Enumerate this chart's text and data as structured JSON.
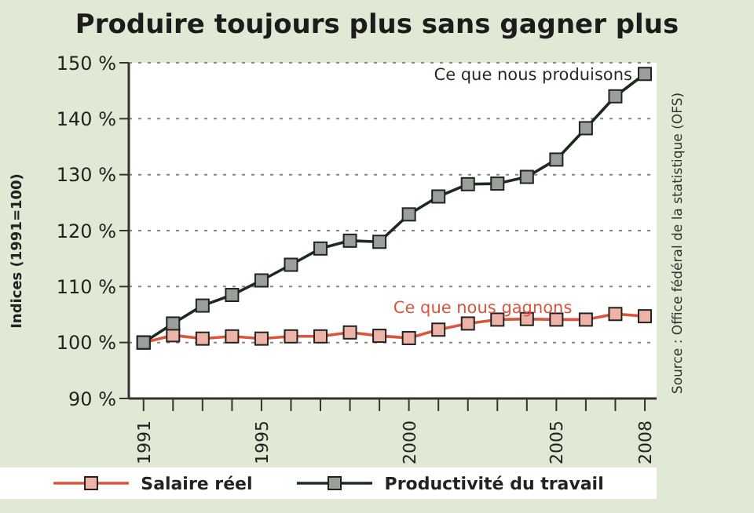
{
  "chart_data": {
    "type": "line",
    "title": "Produire toujours plus sans gagner plus",
    "ylabel": "Indices (1991=100)",
    "x": [
      1991,
      1992,
      1993,
      1994,
      1995,
      1996,
      1997,
      1998,
      1999,
      2000,
      2001,
      2002,
      2003,
      2004,
      2005,
      2006,
      2007,
      2008
    ],
    "series": [
      {
        "name": "Salaire réel",
        "color": "#d9553c",
        "values": [
          100,
          101.3,
          100.7,
          101.1,
          100.7,
          101.1,
          101.1,
          101.8,
          101.2,
          100.8,
          102.3,
          103.4,
          104.1,
          104.2,
          104.1,
          104.1,
          105.1,
          104.7
        ]
      },
      {
        "name": "Productivité du travail",
        "color": "#1c2b1c",
        "values": [
          100,
          103.4,
          106.6,
          108.5,
          111.1,
          113.9,
          116.8,
          118.2,
          118,
          122.9,
          126.1,
          128.3,
          128.4,
          129.6,
          132.7,
          138.3,
          144,
          148
        ]
      }
    ],
    "xlim": [
      1990.5,
      2008.4
    ],
    "xticks": [
      1991,
      {
        "value": 1992,
        "label": null
      },
      {
        "value": 1993,
        "label": null
      },
      {
        "value": 1994,
        "label": null
      },
      1995,
      {
        "value": 1996,
        "label": null
      },
      {
        "value": 1997,
        "label": null
      },
      {
        "value": 1998,
        "label": null
      },
      {
        "value": 1999,
        "label": null
      },
      2000,
      {
        "value": 2001,
        "label": null
      },
      {
        "value": 2002,
        "label": null
      },
      {
        "value": 2003,
        "label": null
      },
      {
        "value": 2004,
        "label": null
      },
      2005,
      {
        "value": 2006,
        "label": null
      },
      {
        "value": 2007,
        "label": null
      },
      2008
    ],
    "ylim": [
      90,
      150
    ],
    "yticks": [
      {
        "value": 90,
        "label": "90 %"
      },
      {
        "value": 100,
        "label": "100 %"
      },
      {
        "value": 110,
        "label": "110 %"
      },
      {
        "value": 120,
        "label": "120 %"
      },
      {
        "value": 130,
        "label": "130 %"
      },
      {
        "value": 140,
        "label": "140 %"
      },
      {
        "value": 150,
        "label": "150 %"
      }
    ],
    "grid": "y",
    "legend": "bottom",
    "marker": "square",
    "line_style": "solid",
    "annotations": [
      {
        "text": "Ce que nous produisons",
        "x": 2008,
        "y": 148
      },
      {
        "text": "Ce que nous gagnons",
        "x": 2005,
        "y": 104.1
      },
      "Source : Office fédéral de la statistique (OFS)"
    ]
  }
}
